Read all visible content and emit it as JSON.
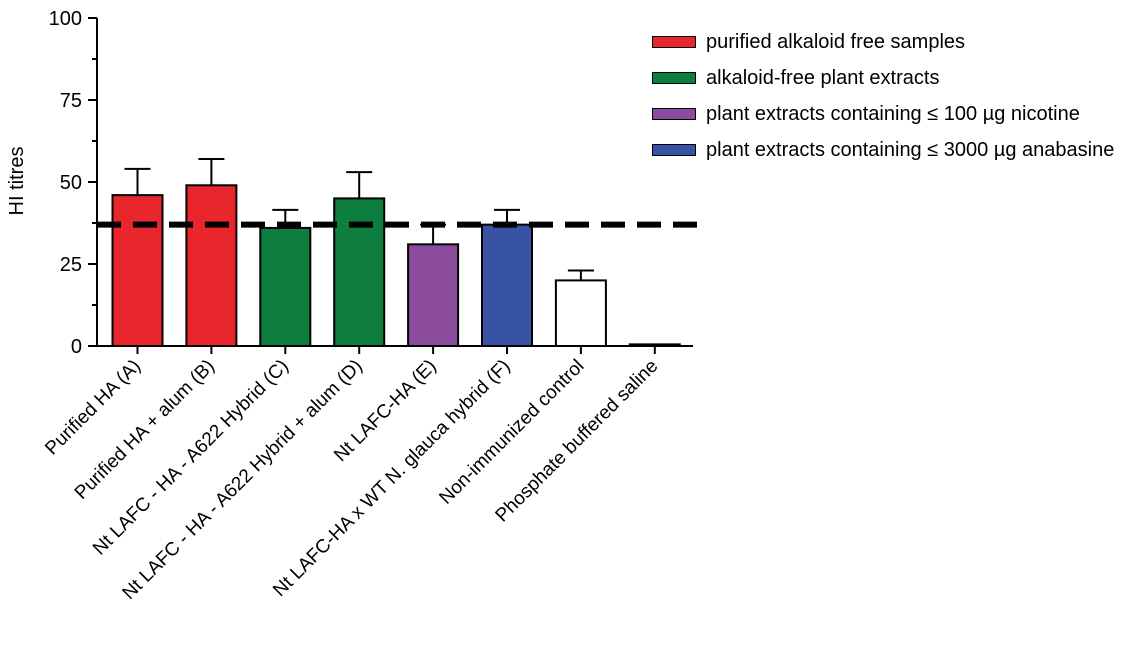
{
  "chart_data": {
    "type": "bar",
    "ylabel": "HI titres",
    "ylim": [
      0,
      100
    ],
    "yticks": [
      0,
      25,
      50,
      75,
      100
    ],
    "categories": [
      "Purified HA (A)",
      "Purified HA + alum (B)",
      "Nt LAFC - HA - A622 Hybrid (C)",
      "Nt LAFC - HA - A622 Hybrid + alum (D)",
      "Nt LAFC-HA (E)",
      "Nt LAFC-HA x WT N. glauca hybrid (F)",
      "Non-immunized control",
      "Phosphate buffered saline"
    ],
    "values": [
      46,
      49,
      36,
      45,
      31,
      37,
      20,
      0.5
    ],
    "errors": [
      8,
      8,
      5.5,
      8,
      6,
      4.5,
      3,
      0
    ],
    "bar_colors": [
      "#e8262b",
      "#e8262b",
      "#0d7e3d",
      "#0d7e3d",
      "#8b4c9e",
      "#3953a4",
      "#ffffff",
      "#ffffff"
    ],
    "reference_line": 37,
    "legend": [
      {
        "label": "purified alkaloid free samples",
        "color": "#e8262b"
      },
      {
        "label": "alkaloid-free plant extracts",
        "color": "#0d7e3d"
      },
      {
        "label": "plant extracts containing ≤ 100 µg nicotine",
        "color": "#8b4c9e"
      },
      {
        "label": "plant extracts containing ≤ 3000 µg anabasine",
        "color": "#3953a4"
      }
    ],
    "legend_position": "top-right",
    "grid": false
  }
}
